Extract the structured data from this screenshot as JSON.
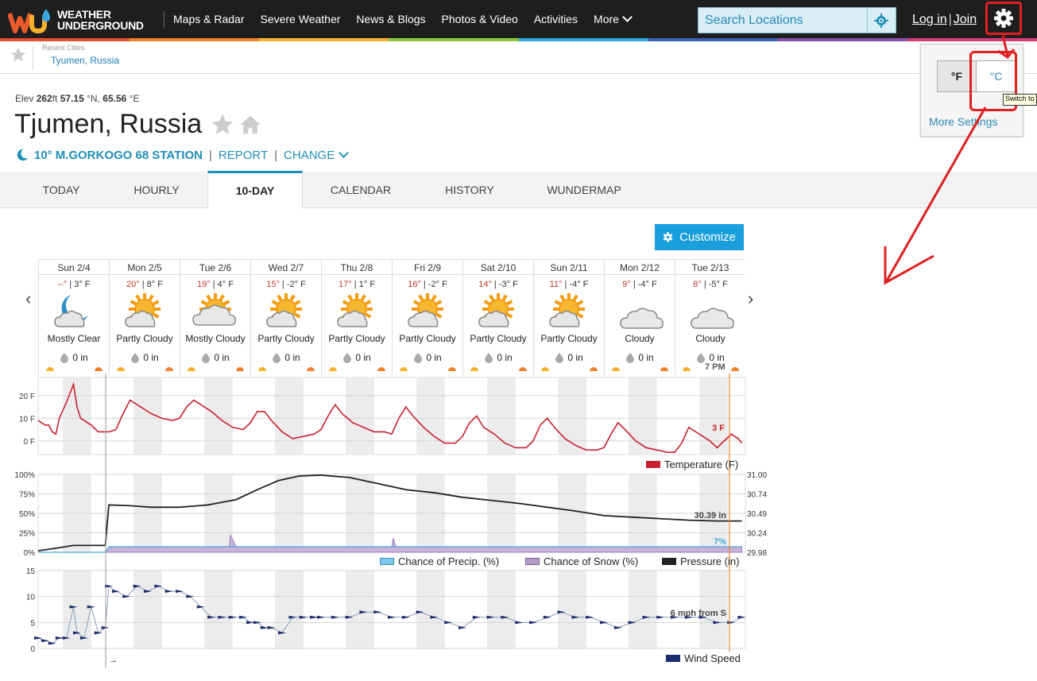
{
  "logo": {
    "line1": "WEATHER",
    "line2": "UNDERGROUND"
  },
  "nav": {
    "items": [
      "Maps & Radar",
      "Severe Weather",
      "News & Blogs",
      "Photos & Video",
      "Activities"
    ],
    "more": "More"
  },
  "search": {
    "placeholder": "Search Locations"
  },
  "auth": {
    "login": "Log in",
    "sep": "|",
    "join": "Join"
  },
  "recent": {
    "label": "Recent Cities",
    "city": "Tyumen, Russia"
  },
  "units": {
    "f": "°F",
    "c": "°C",
    "more": "More Settings",
    "tooltip": "Switch to"
  },
  "location": {
    "elev_label": "Elev",
    "elev": "262",
    "elev_unit": "ft",
    "lat": "57.15",
    "lat_unit": "°N,",
    "lon": "65.56",
    "lon_unit": "°E",
    "name": "Tjumen, Russia",
    "station_temp": "10°",
    "station": "M.GORKOGO 68 STATION",
    "report": "REPORT",
    "change": "CHANGE"
  },
  "tabs": [
    "TODAY",
    "HOURLY",
    "10-DAY",
    "CALENDAR",
    "HISTORY",
    "WUNDERMAP"
  ],
  "active_tab": "10-DAY",
  "customize": "Customize",
  "colors": {
    "brand_blue": "#1f8fb8",
    "temp_line": "#c8202f",
    "pressure_line": "#222222",
    "precip": "#7cc8ec",
    "snow": "#b49bc8",
    "wind": "#1a2e6e",
    "annotation": "#e02020"
  },
  "days": [
    {
      "date": "Sun 2/4",
      "hi": "--°",
      "lo": "3° F",
      "icon": "moon-cloud",
      "cond": "Mostly Clear",
      "precip": "0 in"
    },
    {
      "date": "Mon 2/5",
      "hi": "20°",
      "lo": "8° F",
      "icon": "sun-cloud",
      "cond": "Partly Cloudy",
      "precip": "0 in"
    },
    {
      "date": "Tue 2/6",
      "hi": "19°",
      "lo": "4° F",
      "icon": "cloud-sun",
      "cond": "Mostly Cloudy",
      "precip": "0 in"
    },
    {
      "date": "Wed 2/7",
      "hi": "15°",
      "lo": "-2° F",
      "icon": "sun-cloud",
      "cond": "Partly Cloudy",
      "precip": "0 in"
    },
    {
      "date": "Thu 2/8",
      "hi": "17°",
      "lo": "1° F",
      "icon": "sun-cloud",
      "cond": "Partly Cloudy",
      "precip": "0 in"
    },
    {
      "date": "Fri 2/9",
      "hi": "16°",
      "lo": "-2° F",
      "icon": "sun-cloud",
      "cond": "Partly Cloudy",
      "precip": "0 in"
    },
    {
      "date": "Sat 2/10",
      "hi": "14°",
      "lo": "-3° F",
      "icon": "sun-cloud",
      "cond": "Partly Cloudy",
      "precip": "0 in"
    },
    {
      "date": "Sun 2/11",
      "hi": "11°",
      "lo": "-4° F",
      "icon": "sun-cloud",
      "cond": "Partly Cloudy",
      "precip": "0 in"
    },
    {
      "date": "Mon 2/12",
      "hi": "9°",
      "lo": "-4° F",
      "icon": "cloud",
      "cond": "Cloudy",
      "precip": "0 in"
    },
    {
      "date": "Tue 2/13",
      "hi": "8°",
      "lo": "-5° F",
      "icon": "cloud",
      "cond": "Cloudy",
      "precip": "0 in"
    }
  ],
  "chart_data": [
    {
      "type": "line",
      "title": "",
      "legend": "Temperature (F)",
      "yticks": [
        "20 F",
        "10 F",
        "0 F"
      ],
      "ylim": [
        -6,
        28
      ],
      "cursor_label": "7 PM",
      "current_label": "3 F",
      "series": [
        {
          "name": "Temperature (F)",
          "x_days": [
            0,
            0.05,
            0.1,
            0.15,
            0.2,
            0.25,
            0.3,
            0.4,
            0.5,
            0.55,
            0.6,
            0.65,
            0.75,
            0.85,
            1.0,
            1.1,
            1.2,
            1.3,
            1.45,
            1.6,
            1.75,
            1.9,
            2.0,
            2.1,
            2.2,
            2.3,
            2.45,
            2.6,
            2.75,
            2.9,
            3.0,
            3.1,
            3.2,
            3.3,
            3.45,
            3.6,
            3.75,
            3.9,
            4.0,
            4.1,
            4.2,
            4.3,
            4.45,
            4.6,
            4.75,
            4.9,
            5.0,
            5.1,
            5.2,
            5.3,
            5.45,
            5.6,
            5.75,
            5.9,
            6.0,
            6.1,
            6.2,
            6.3,
            6.45,
            6.6,
            6.75,
            6.9,
            7.0,
            7.1,
            7.2,
            7.3,
            7.45,
            7.6,
            7.75,
            7.9,
            8.0,
            8.1,
            8.2,
            8.3,
            8.45,
            8.6,
            8.75,
            8.9,
            9.0,
            9.1,
            9.2,
            9.35,
            9.5,
            9.6,
            9.7,
            9.8,
            9.9,
            9.95
          ],
          "values": [
            9,
            8,
            7,
            7,
            4,
            3,
            10,
            17,
            25,
            15,
            10,
            9,
            7,
            4,
            4,
            5,
            12,
            18,
            15,
            12,
            10,
            9,
            10,
            15,
            18,
            16,
            13,
            9,
            6,
            5,
            8,
            13,
            13,
            9,
            4,
            1,
            2,
            3,
            5,
            11,
            16,
            12,
            8,
            6,
            4,
            4,
            3,
            10,
            15,
            11,
            6,
            2,
            -1,
            -1,
            2,
            8,
            11,
            6,
            3,
            -1,
            -3,
            -3,
            0,
            7,
            10,
            6,
            1,
            -2,
            -4,
            -4,
            -3,
            3,
            8,
            5,
            0,
            -3,
            -4,
            -5,
            -5,
            -1,
            6,
            3,
            0,
            -3,
            0,
            3,
            1,
            -1
          ]
        }
      ]
    },
    {
      "type": "line",
      "title": "",
      "legend": [
        "Chance of Precip. (%)",
        "Chance of Snow (%)",
        "Pressure (in)"
      ],
      "yticks_left": [
        "100%",
        "75%",
        "50%",
        "25%",
        "0%"
      ],
      "yticks_right": [
        "31.00",
        "30.74",
        "30.49",
        "30.24",
        "29.98"
      ],
      "ylim_left": [
        0,
        100
      ],
      "ylim_right": [
        29.98,
        31.0
      ],
      "pressure_label": "30.39 in",
      "precip_label": "7%",
      "series": [
        {
          "name": "Pressure (in)",
          "x_days": [
            0,
            0.3,
            0.5,
            0.8,
            0.95,
            1.0,
            1.3,
            1.6,
            2.0,
            2.4,
            2.8,
            3.1,
            3.4,
            3.7,
            4.0,
            4.4,
            4.8,
            5.2,
            5.6,
            6.0,
            6.4,
            6.8,
            7.2,
            7.6,
            8.0,
            8.4,
            8.8,
            9.2,
            9.6,
            9.95
          ],
          "values": [
            30.0,
            30.04,
            30.07,
            30.07,
            30.07,
            30.6,
            30.59,
            30.57,
            30.57,
            30.6,
            30.67,
            30.8,
            30.92,
            30.98,
            30.99,
            30.96,
            30.88,
            30.8,
            30.76,
            30.7,
            30.66,
            30.62,
            30.57,
            30.52,
            30.46,
            30.44,
            30.42,
            30.4,
            30.39,
            30.39
          ]
        },
        {
          "name": "Chance of Snow (%)",
          "x_days": [
            0,
            0.95,
            1.0,
            2.7,
            2.72,
            2.8,
            5.0,
            5.02,
            5.06,
            9.95
          ],
          "values": [
            0,
            0,
            7,
            7,
            22,
            7,
            7,
            18,
            7,
            7
          ]
        },
        {
          "name": "Chance of Precip. (%)",
          "x_days": [
            0,
            0.95,
            1.0,
            9.95
          ],
          "values": [
            0,
            0,
            7,
            7
          ]
        }
      ]
    },
    {
      "type": "line",
      "title": "",
      "legend": "Wind Speed",
      "yticks": [
        "15",
        "10",
        "5",
        "0"
      ],
      "ylim": [
        0,
        15
      ],
      "wind_label": "6 mph from S",
      "series": [
        {
          "name": "Wind Speed",
          "x_days": [
            0,
            0.1,
            0.2,
            0.3,
            0.4,
            0.5,
            0.55,
            0.65,
            0.75,
            0.85,
            0.95,
            1.0,
            1.1,
            1.25,
            1.4,
            1.55,
            1.7,
            1.85,
            2.0,
            2.15,
            2.3,
            2.45,
            2.6,
            2.75,
            2.9,
            3.0,
            3.1,
            3.2,
            3.3,
            3.45,
            3.6,
            3.75,
            3.9,
            4.0,
            4.2,
            4.4,
            4.6,
            4.8,
            5.0,
            5.2,
            5.4,
            5.6,
            5.8,
            6.0,
            6.2,
            6.4,
            6.6,
            6.8,
            7.0,
            7.2,
            7.4,
            7.6,
            7.8,
            8.0,
            8.2,
            8.4,
            8.6,
            8.8,
            9.0,
            9.2,
            9.4,
            9.6,
            9.8,
            9.95
          ],
          "values": [
            2,
            1.5,
            1,
            2,
            2,
            8,
            3,
            2,
            8,
            3,
            4,
            12,
            11,
            10,
            12,
            11,
            12,
            11,
            11,
            10,
            8,
            6,
            6,
            6,
            6,
            5,
            5,
            4,
            4,
            3,
            6,
            6,
            6,
            6,
            6,
            6,
            7,
            7,
            6,
            6,
            7,
            6,
            5,
            4,
            6,
            6,
            6,
            5,
            5,
            6,
            7,
            6,
            6,
            5,
            4,
            5,
            6,
            6,
            6,
            6,
            6,
            5,
            5,
            6
          ]
        }
      ]
    }
  ]
}
